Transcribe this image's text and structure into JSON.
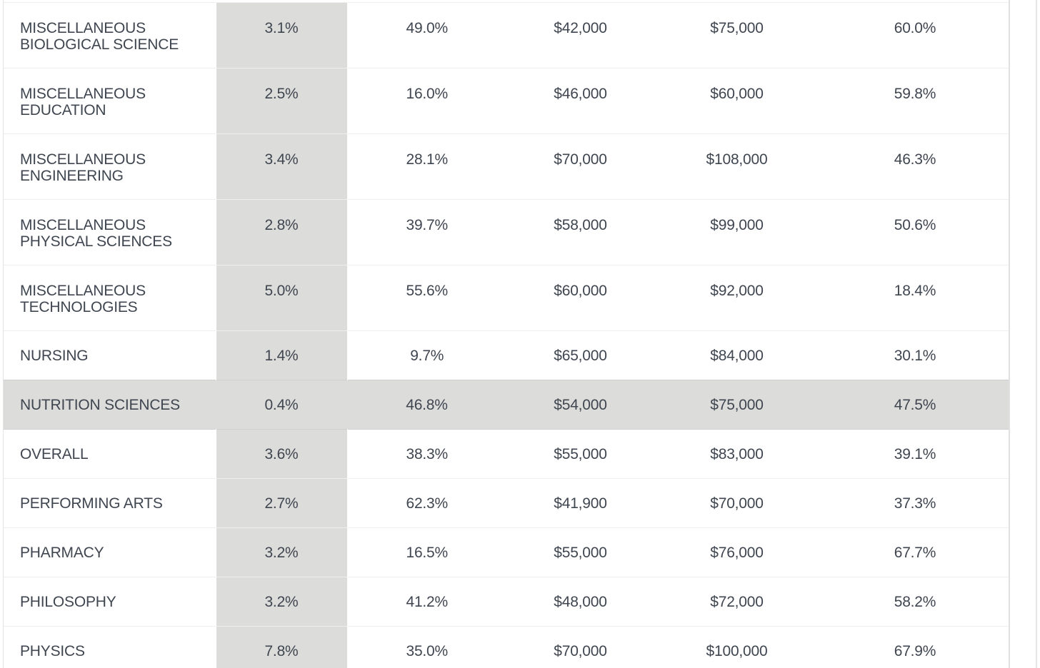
{
  "chart_data": {
    "type": "table",
    "highlighted_row": "NUTRITION SCIENCES",
    "shaded_column_index": 1,
    "colors": {
      "shade": "#dcdcda",
      "text": "#3f4650",
      "rule": "#eeeeee"
    },
    "rows": [
      {
        "major": "MISCELLANEOUS BIOLOGICAL SCIENCE",
        "c1": "3.1%",
        "c2": "49.0%",
        "c3": "$42,000",
        "c4": "$75,000",
        "c5": "60.0%"
      },
      {
        "major": "MISCELLANEOUS EDUCATION",
        "c1": "2.5%",
        "c2": "16.0%",
        "c3": "$46,000",
        "c4": "$60,000",
        "c5": "59.8%"
      },
      {
        "major": "MISCELLANEOUS ENGINEERING",
        "c1": "3.4%",
        "c2": "28.1%",
        "c3": "$70,000",
        "c4": "$108,000",
        "c5": "46.3%"
      },
      {
        "major": "MISCELLANEOUS PHYSICAL SCIENCES",
        "c1": "2.8%",
        "c2": "39.7%",
        "c3": "$58,000",
        "c4": "$99,000",
        "c5": "50.6%"
      },
      {
        "major": "MISCELLANEOUS TECHNOLOGIES",
        "c1": "5.0%",
        "c2": "55.6%",
        "c3": "$60,000",
        "c4": "$92,000",
        "c5": "18.4%"
      },
      {
        "major": "NURSING",
        "c1": "1.4%",
        "c2": "9.7%",
        "c3": "$65,000",
        "c4": "$84,000",
        "c5": "30.1%"
      },
      {
        "major": "NUTRITION SCIENCES",
        "c1": "0.4%",
        "c2": "46.8%",
        "c3": "$54,000",
        "c4": "$75,000",
        "c5": "47.5%"
      },
      {
        "major": "OVERALL",
        "c1": "3.6%",
        "c2": "38.3%",
        "c3": "$55,000",
        "c4": "$83,000",
        "c5": "39.1%"
      },
      {
        "major": "PERFORMING ARTS",
        "c1": "2.7%",
        "c2": "62.3%",
        "c3": "$41,900",
        "c4": "$70,000",
        "c5": "37.3%"
      },
      {
        "major": "PHARMACY",
        "c1": "3.2%",
        "c2": "16.5%",
        "c3": "$55,000",
        "c4": "$76,000",
        "c5": "67.7%"
      },
      {
        "major": "PHILOSOPHY",
        "c1": "3.2%",
        "c2": "41.2%",
        "c3": "$48,000",
        "c4": "$72,000",
        "c5": "58.2%"
      },
      {
        "major": "PHYSICS",
        "c1": "7.8%",
        "c2": "35.0%",
        "c3": "$70,000",
        "c4": "$100,000",
        "c5": "67.9%"
      }
    ]
  }
}
